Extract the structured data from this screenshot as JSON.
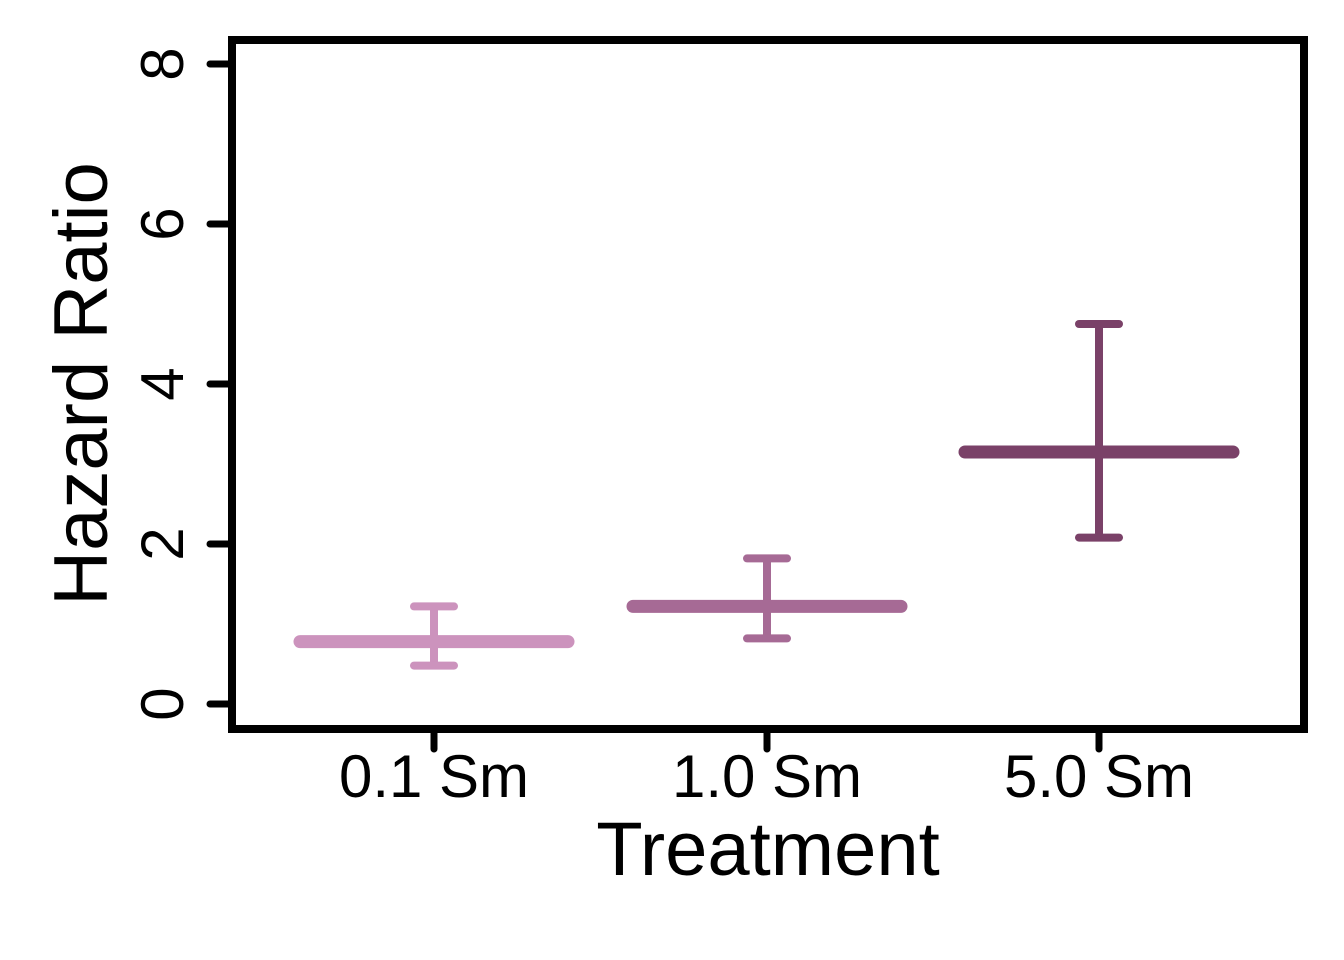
{
  "chart_data": {
    "type": "errorbar",
    "categories": [
      "0.1 Sm",
      "1.0 Sm",
      "5.0 Sm"
    ],
    "values": [
      0.78,
      1.22,
      3.15
    ],
    "error_low": [
      0.48,
      0.82,
      2.08
    ],
    "error_high": [
      1.22,
      1.82,
      4.75
    ],
    "colors": [
      "#cc93bd",
      "#a66a95",
      "#7a4168"
    ],
    "xlabel": "Treatment",
    "ylabel": "Hazard Ratio",
    "ylim": [
      0,
      8
    ],
    "yticks": [
      "0",
      "2",
      "4",
      "6",
      "8"
    ],
    "grid": false,
    "legend": "none"
  }
}
